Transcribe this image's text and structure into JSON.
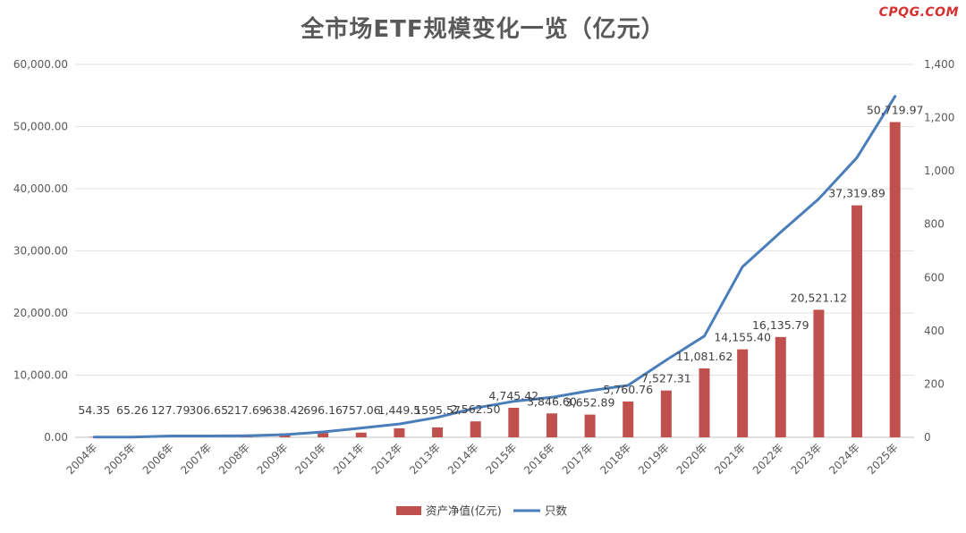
{
  "title": "全市场ETF规模变化一览（亿元）",
  "watermark": "CPQG.COM",
  "chart_data": {
    "type": "bar",
    "title": "全市场ETF规模变化一览（亿元）",
    "categories": [
      "2004年",
      "2005年",
      "2006年",
      "2007年",
      "2008年",
      "2009年",
      "2010年",
      "2011年",
      "2012年",
      "2013年",
      "2014年",
      "2015年",
      "2016年",
      "2017年",
      "2018年",
      "2019年",
      "2020年",
      "2021年",
      "2022年",
      "2023年",
      "2024年",
      "2025年"
    ],
    "series": [
      {
        "name": "资产净值(亿元)",
        "type": "bar",
        "axis": "left",
        "color": "#c0504d",
        "values": [
          54.35,
          65.26,
          127.79,
          306.65,
          217.69,
          638.42,
          696.16,
          757.06,
          1449.5,
          1595.57,
          2562.5,
          4745.42,
          3846.6,
          3652.89,
          5760.76,
          7527.31,
          11081.62,
          14155.4,
          16135.79,
          20521.12,
          37319.89,
          50719.97
        ],
        "labels": [
          "54.35",
          "65.26",
          "127.79",
          "306.65",
          "217.69",
          "638.42",
          "696.16",
          "757.06",
          "1,449.5",
          "1595.57",
          "2,562.50",
          "4,745.42",
          "3,846.60",
          "3,652.89",
          "5,760.76",
          "7,527.31",
          "11,081.62",
          "14,155.40",
          "16,135.79",
          "20,521.12",
          "37,319.89",
          "50,719.97"
        ]
      },
      {
        "name": "只数",
        "type": "line",
        "axis": "right",
        "color": "#4a7ebb",
        "values": [
          1,
          1,
          5,
          5,
          6,
          10,
          20,
          35,
          50,
          75,
          110,
          135,
          150,
          175,
          195,
          290,
          380,
          640,
          770,
          895,
          1050,
          1280
        ]
      }
    ],
    "y_left": {
      "ylim": [
        0,
        60000
      ],
      "ticks": [
        "0.00",
        "10,000.00",
        "20,000.00",
        "30,000.00",
        "40,000.00",
        "50,000.00",
        "60,000.00"
      ]
    },
    "y_right": {
      "ylim": [
        0,
        1400
      ],
      "ticks": [
        "0",
        "200",
        "400",
        "600",
        "800",
        "1,000",
        "1,200",
        "1,400"
      ]
    },
    "grid": true,
    "legend_position": "bottom"
  }
}
